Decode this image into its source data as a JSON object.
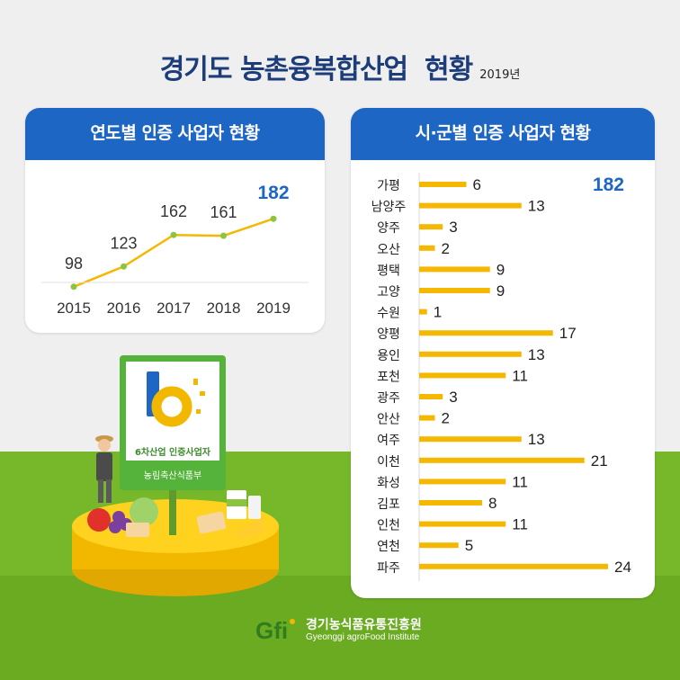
{
  "title": "경기도 농촌융복합산업  현황",
  "year_note": "2019년",
  "left_panel": {
    "header": "연도별 인증 사업자 현황"
  },
  "right_panel": {
    "header": "시·군별 인증 사업자 현황",
    "total": "182"
  },
  "badge": {
    "cert_text": "6차산업 인증사업자",
    "ministry_text": "농림축산식품부"
  },
  "logo": {
    "mark": "Gfi",
    "name_ko": "경기농식품유통진흥원",
    "name_en": "Gyeonggi agroFood Institute"
  },
  "colors": {
    "title": "#1c3c7a",
    "header_bg": "#1d66c3",
    "accent_blue": "#1d66c3",
    "bar": "#f5b800",
    "line": "#f5b800",
    "marker": "#8bc53f",
    "green_bg": "#76b82a"
  },
  "chart_data": [
    {
      "type": "line",
      "categories": [
        "2015",
        "2016",
        "2017",
        "2018",
        "2019"
      ],
      "values": [
        98,
        123,
        162,
        161,
        182
      ],
      "data_labels": [
        "98",
        "123",
        "162",
        "161",
        "182"
      ],
      "highlight_index": 4,
      "grid": false
    },
    {
      "type": "bar",
      "orientation": "horizontal",
      "categories": [
        "가평",
        "남양주",
        "양주",
        "오산",
        "평택",
        "고양",
        "수원",
        "양평",
        "용인",
        "포천",
        "광주",
        "안산",
        "여주",
        "이천",
        "화성",
        "김포",
        "인천",
        "연천",
        "파주"
      ],
      "values": [
        6,
        13,
        3,
        2,
        9,
        9,
        1,
        17,
        13,
        11,
        3,
        2,
        13,
        21,
        11,
        8,
        11,
        5,
        24
      ],
      "grid": false
    }
  ]
}
